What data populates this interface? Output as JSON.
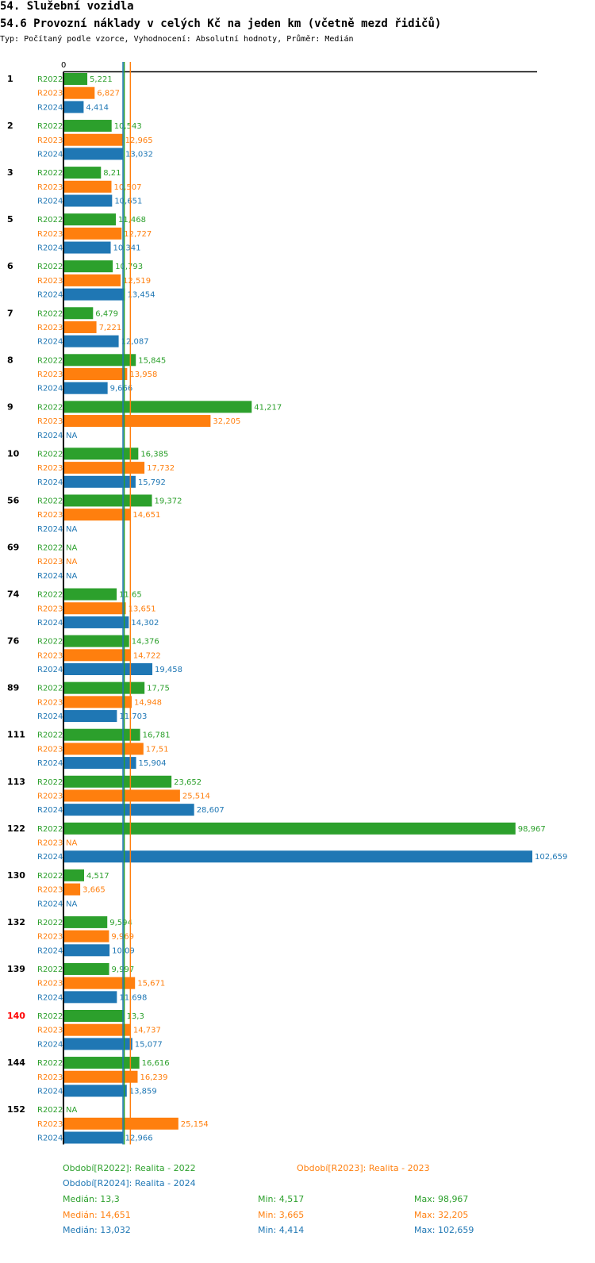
{
  "header": {
    "section": "54. Služební vozidla",
    "title": "54.6 Provozní náklady v celých Kč na jeden km (včetně mezd řidičů)",
    "subtitle": "Typ: Počítaný podle vzorce, Vyhodnocení: Absolutní hodnoty, Průměr: Medián"
  },
  "colors": {
    "R2022": "#2ca02c",
    "R2023": "#ff7f0e",
    "R2024": "#1f77b4",
    "highlight": "#ff0000"
  },
  "chart_data": {
    "type": "bar",
    "orientation": "horizontal",
    "axis_zero_label": "0",
    "xlim": [
      0,
      102.659
    ],
    "series_names": [
      "R2022",
      "R2023",
      "R2024"
    ],
    "na_label": "NA",
    "groups": [
      {
        "id": "1",
        "highlight": false,
        "values": [
          5.221,
          6.827,
          4.414
        ],
        "labels": [
          "5,221",
          "6,827",
          "4,414"
        ]
      },
      {
        "id": "2",
        "highlight": false,
        "values": [
          10.543,
          12.965,
          13.032
        ],
        "labels": [
          "10,543",
          "12,965",
          "13,032"
        ]
      },
      {
        "id": "3",
        "highlight": false,
        "values": [
          8.21,
          10.507,
          10.651
        ],
        "labels": [
          "8,21",
          "10,507",
          "10,651"
        ]
      },
      {
        "id": "5",
        "highlight": false,
        "values": [
          11.468,
          12.727,
          10.341
        ],
        "labels": [
          "11,468",
          "12,727",
          "10,341"
        ]
      },
      {
        "id": "6",
        "highlight": false,
        "values": [
          10.793,
          12.519,
          13.454
        ],
        "labels": [
          "10,793",
          "12,519",
          "13,454"
        ]
      },
      {
        "id": "7",
        "highlight": false,
        "values": [
          6.479,
          7.221,
          12.087
        ],
        "labels": [
          "6,479",
          "7,221",
          "12,087"
        ]
      },
      {
        "id": "8",
        "highlight": false,
        "values": [
          15.845,
          13.958,
          9.666
        ],
        "labels": [
          "15,845",
          "13,958",
          "9,666"
        ]
      },
      {
        "id": "9",
        "highlight": false,
        "values": [
          41.217,
          32.205,
          null
        ],
        "labels": [
          "41,217",
          "32,205",
          "NA"
        ]
      },
      {
        "id": "10",
        "highlight": false,
        "values": [
          16.385,
          17.732,
          15.792
        ],
        "labels": [
          "16,385",
          "17,732",
          "15,792"
        ]
      },
      {
        "id": "56",
        "highlight": false,
        "values": [
          19.372,
          14.651,
          null
        ],
        "labels": [
          "19,372",
          "14,651",
          "NA"
        ]
      },
      {
        "id": "69",
        "highlight": false,
        "values": [
          null,
          null,
          null
        ],
        "labels": [
          "NA",
          "NA",
          "NA"
        ]
      },
      {
        "id": "74",
        "highlight": false,
        "values": [
          11.65,
          13.651,
          14.302
        ],
        "labels": [
          "11,65",
          "13,651",
          "14,302"
        ]
      },
      {
        "id": "76",
        "highlight": false,
        "values": [
          14.376,
          14.722,
          19.458
        ],
        "labels": [
          "14,376",
          "14,722",
          "19,458"
        ]
      },
      {
        "id": "89",
        "highlight": false,
        "values": [
          17.75,
          14.948,
          11.703
        ],
        "labels": [
          "17,75",
          "14,948",
          "11,703"
        ]
      },
      {
        "id": "111",
        "highlight": false,
        "values": [
          16.781,
          17.51,
          15.904
        ],
        "labels": [
          "16,781",
          "17,51",
          "15,904"
        ]
      },
      {
        "id": "113",
        "highlight": false,
        "values": [
          23.652,
          25.514,
          28.607
        ],
        "labels": [
          "23,652",
          "25,514",
          "28,607"
        ]
      },
      {
        "id": "122",
        "highlight": false,
        "values": [
          98.967,
          null,
          102.659
        ],
        "labels": [
          "98,967",
          "NA",
          "102,659"
        ]
      },
      {
        "id": "130",
        "highlight": false,
        "values": [
          4.517,
          3.665,
          null
        ],
        "labels": [
          "4,517",
          "3,665",
          "NA"
        ]
      },
      {
        "id": "132",
        "highlight": false,
        "values": [
          9.594,
          9.969,
          10.09
        ],
        "labels": [
          "9,594",
          "9,969",
          "10,09"
        ]
      },
      {
        "id": "139",
        "highlight": false,
        "values": [
          9.997,
          15.671,
          11.698
        ],
        "labels": [
          "9,997",
          "15,671",
          "11,698"
        ]
      },
      {
        "id": "140",
        "highlight": true,
        "values": [
          13.3,
          14.737,
          15.077
        ],
        "labels": [
          "13,3",
          "14,737",
          "15,077"
        ]
      },
      {
        "id": "144",
        "highlight": false,
        "values": [
          16.616,
          16.239,
          13.859
        ],
        "labels": [
          "16,616",
          "16,239",
          "13,859"
        ]
      },
      {
        "id": "152",
        "highlight": false,
        "values": [
          null,
          25.154,
          12.966
        ],
        "labels": [
          "NA",
          "25,154",
          "12,966"
        ]
      }
    ],
    "medians": [
      13.3,
      14.651,
      13.032
    ]
  },
  "legend": {
    "period_2022": "Období[R2022]: Realita - 2022",
    "period_2023": "Období[R2023]: Realita - 2023",
    "period_2024": "Období[R2024]: Realita - 2024",
    "stats": [
      {
        "median": "Medián: 13,3",
        "min": "Min: 4,517",
        "max": "Max: 98,967"
      },
      {
        "median": "Medián: 14,651",
        "min": "Min: 3,665",
        "max": "Max: 32,205"
      },
      {
        "median": "Medián: 13,032",
        "min": "Min: 4,414",
        "max": "Max: 102,659"
      }
    ]
  }
}
